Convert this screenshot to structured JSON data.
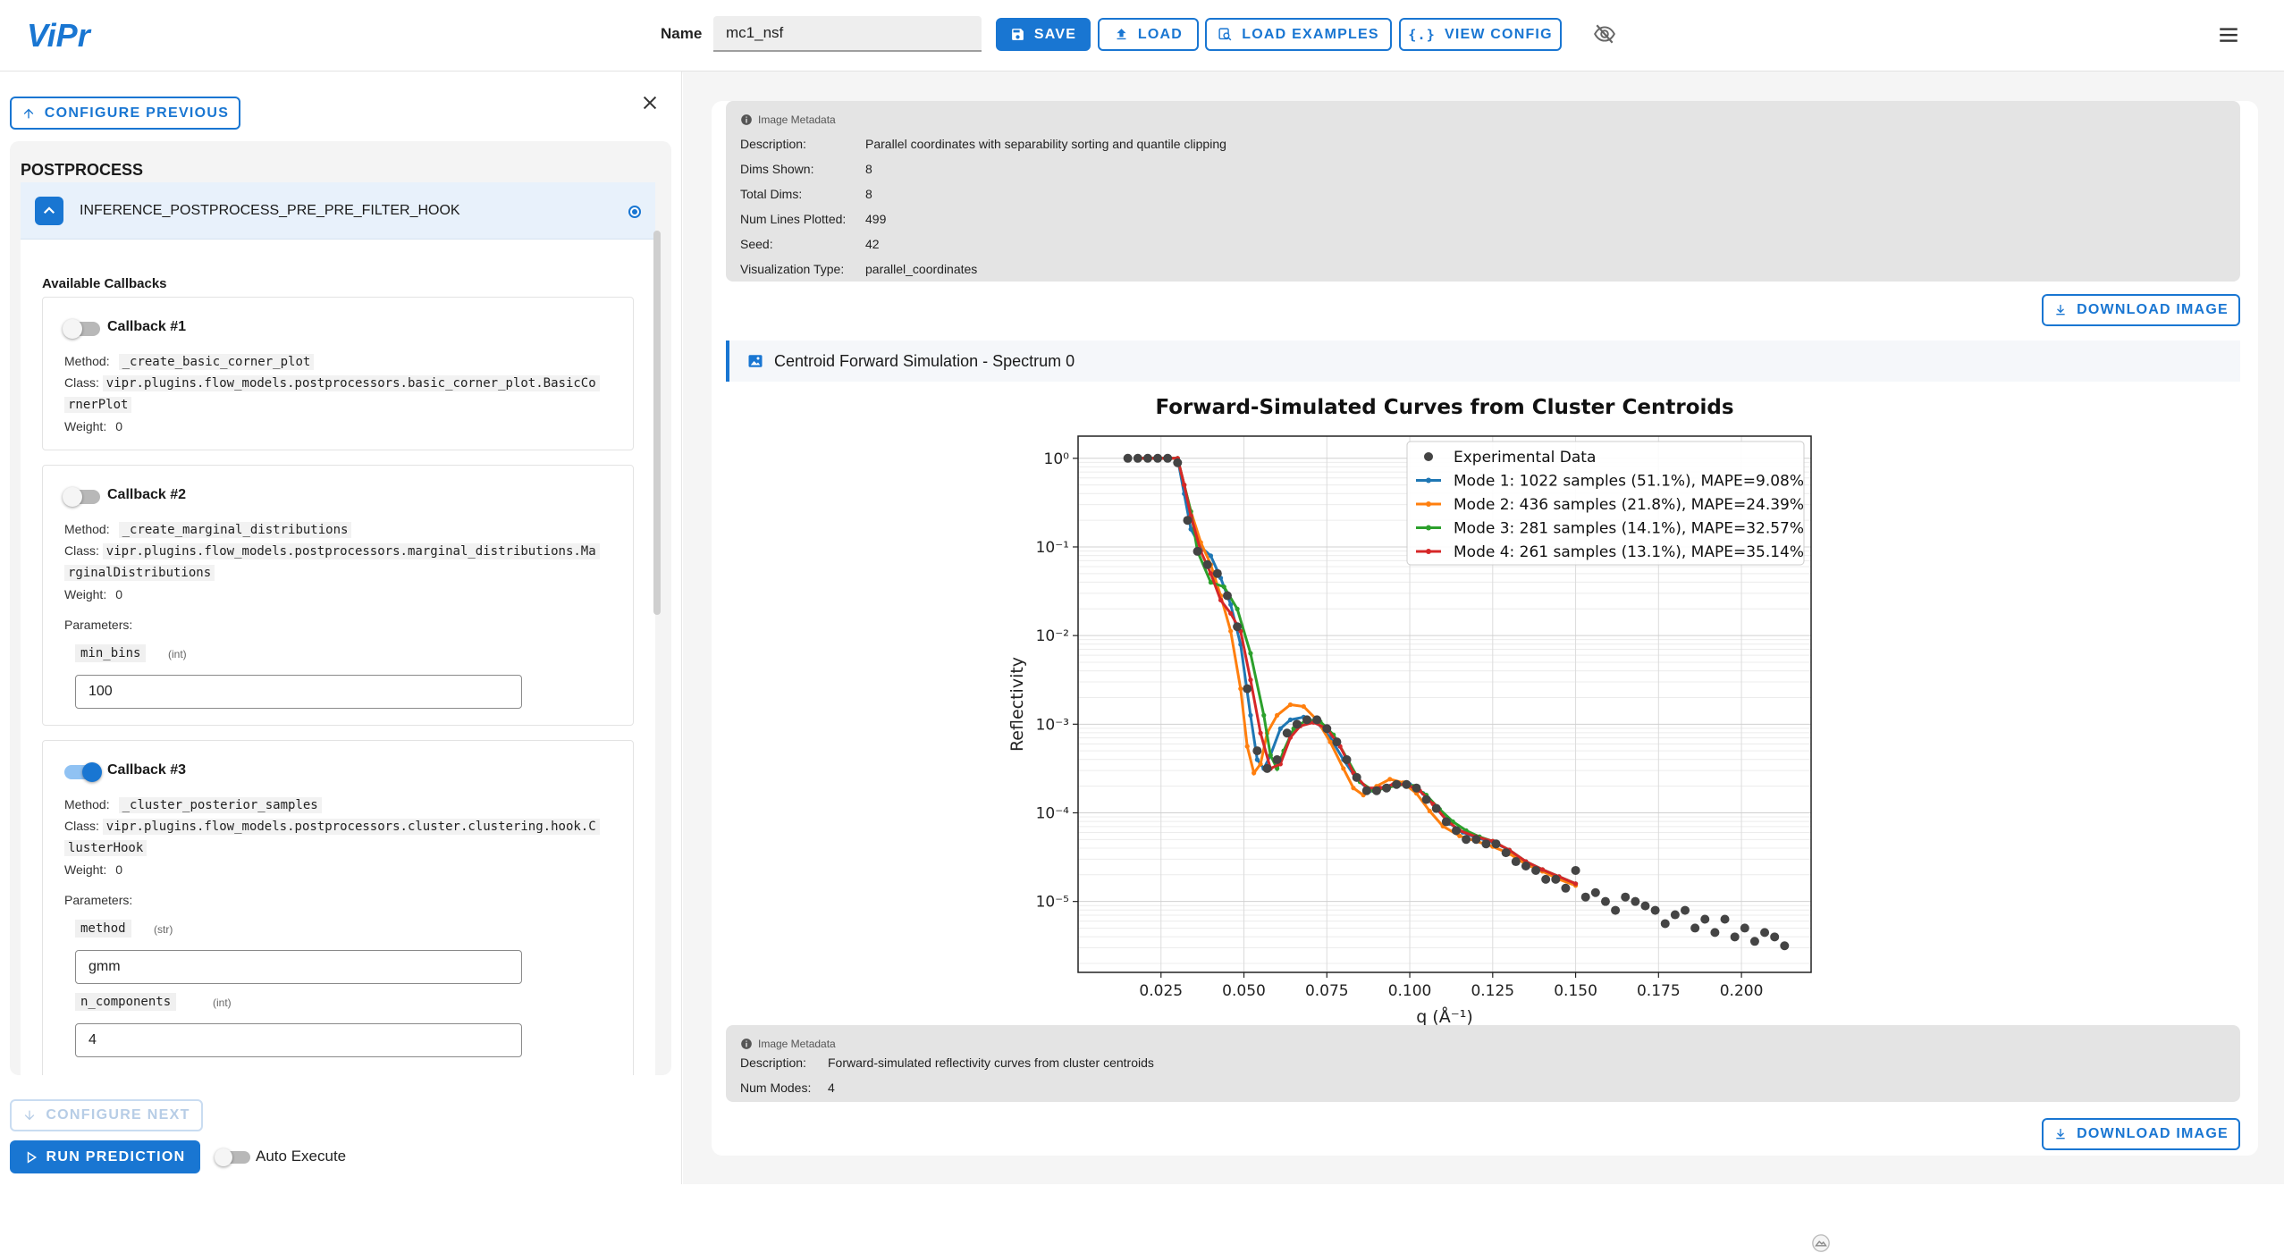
{
  "header": {
    "logo_text": "ViPr",
    "name_label": "Name",
    "name_value": "mc1_nsf",
    "save_label": "SAVE",
    "load_label": "LOAD",
    "load_examples_label": "LOAD EXAMPLES",
    "view_config_label": "VIEW CONFIG",
    "accent_color": "#1976d2"
  },
  "left": {
    "configure_previous_label": "CONFIGURE PREVIOUS",
    "configure_next_label": "CONFIGURE NEXT",
    "section_title": "POSTPROCESS",
    "hook_label": "INFERENCE_POSTPROCESS_PRE_PRE_FILTER_HOOK",
    "available_callbacks_label": "Available Callbacks",
    "callbacks": [
      {
        "title": "Callback #1",
        "enabled": false,
        "method_label": "Method:",
        "method": "_create_basic_corner_plot",
        "class_label": "Class:",
        "class_line1": "vipr.plugins.flow_models.postprocessors.basic_corner_plot.BasicCo",
        "class_line2": "rnerPlot",
        "weight_label": "Weight:",
        "weight": "0"
      },
      {
        "title": "Callback #2",
        "enabled": false,
        "method_label": "Method:",
        "method": "_create_marginal_distributions",
        "class_label": "Class:",
        "class_line1": "vipr.plugins.flow_models.postprocessors.marginal_distributions.Ma",
        "class_line2": "rginalDistributions",
        "weight_label": "Weight:",
        "weight": "0",
        "parameters_label": "Parameters:",
        "params": [
          {
            "name": "min_bins",
            "type": "(int)",
            "value": "100"
          }
        ]
      },
      {
        "title": "Callback #3",
        "enabled": true,
        "method_label": "Method:",
        "method": "_cluster_posterior_samples",
        "class_label": "Class:",
        "class_line1": "vipr.plugins.flow_models.postprocessors.cluster.clustering.hook.C",
        "class_line2": "lusterHook",
        "weight_label": "Weight:",
        "weight": "0",
        "parameters_label": "Parameters:",
        "params": [
          {
            "name": "method",
            "type": "(str)",
            "value": "gmm"
          },
          {
            "name": "n_components",
            "type": "(int)",
            "value": "4"
          }
        ]
      }
    ],
    "run_prediction_label": "RUN PREDICTION",
    "auto_execute_label": "Auto Execute"
  },
  "right": {
    "meta1": {
      "heading": "Image Metadata",
      "rows": [
        {
          "key": "Description:",
          "value": "Parallel coordinates with separability sorting and quantile clipping"
        },
        {
          "key": "Dims Shown:",
          "value": "8"
        },
        {
          "key": "Total Dims:",
          "value": "8"
        },
        {
          "key": "Num Lines Plotted:",
          "value": "499"
        },
        {
          "key": "Seed:",
          "value": "42"
        },
        {
          "key": "Visualization Type:",
          "value": "parallel_coordinates"
        }
      ]
    },
    "download_label": "DOWNLOAD IMAGE",
    "section_title": "Centroid Forward Simulation - Spectrum 0",
    "meta2": {
      "heading": "Image Metadata",
      "rows": [
        {
          "key": "Description:",
          "value": "Forward-simulated reflectivity curves from cluster centroids"
        },
        {
          "key": "Num Modes:",
          "value": "4"
        }
      ]
    }
  },
  "chart_data": {
    "type": "line",
    "title": "Forward-Simulated Curves from Cluster Centroids",
    "xlabel": "q (Å⁻¹)",
    "ylabel": "Reflectivity",
    "yscale": "log",
    "xlim": [
      0.0,
      0.221
    ],
    "ylim_exponent": [
      -5.8,
      0.25
    ],
    "xticks": [
      "0.025",
      "0.050",
      "0.075",
      "0.100",
      "0.125",
      "0.150",
      "0.175",
      "0.200"
    ],
    "yticks": [
      "10⁰",
      "10⁻¹",
      "10⁻²",
      "10⁻³",
      "10⁻⁴",
      "10⁻⁵"
    ],
    "grid": true,
    "legend_position": "top-right",
    "experimental": {
      "name": "Experimental Data",
      "color": "#444444",
      "points": [
        [
          0.015,
          0.0
        ],
        [
          0.018,
          0.0
        ],
        [
          0.021,
          0.0
        ],
        [
          0.024,
          0.0
        ],
        [
          0.027,
          0.0
        ],
        [
          0.03,
          -0.05
        ],
        [
          0.033,
          -0.7
        ],
        [
          0.036,
          -1.05
        ],
        [
          0.039,
          -1.2
        ],
        [
          0.042,
          -1.3
        ],
        [
          0.045,
          -1.55
        ],
        [
          0.048,
          -1.9
        ],
        [
          0.051,
          -2.6
        ],
        [
          0.054,
          -3.3
        ],
        [
          0.057,
          -3.5
        ],
        [
          0.06,
          -3.4
        ],
        [
          0.063,
          -3.1
        ],
        [
          0.066,
          -3.0
        ],
        [
          0.069,
          -2.95
        ],
        [
          0.072,
          -2.95
        ],
        [
          0.075,
          -3.05
        ],
        [
          0.078,
          -3.2
        ],
        [
          0.081,
          -3.4
        ],
        [
          0.084,
          -3.6
        ],
        [
          0.087,
          -3.75
        ],
        [
          0.09,
          -3.75
        ],
        [
          0.093,
          -3.72
        ],
        [
          0.096,
          -3.68
        ],
        [
          0.099,
          -3.68
        ],
        [
          0.102,
          -3.72
        ],
        [
          0.105,
          -3.85
        ],
        [
          0.108,
          -3.95
        ],
        [
          0.111,
          -4.1
        ],
        [
          0.114,
          -4.2
        ],
        [
          0.117,
          -4.3
        ],
        [
          0.12,
          -4.3
        ],
        [
          0.123,
          -4.35
        ],
        [
          0.126,
          -4.35
        ],
        [
          0.129,
          -4.45
        ],
        [
          0.132,
          -4.55
        ],
        [
          0.135,
          -4.6
        ],
        [
          0.138,
          -4.65
        ],
        [
          0.141,
          -4.75
        ],
        [
          0.144,
          -4.75
        ],
        [
          0.147,
          -4.85
        ],
        [
          0.15,
          -4.65
        ],
        [
          0.153,
          -4.95
        ],
        [
          0.156,
          -4.9
        ],
        [
          0.159,
          -5.0
        ],
        [
          0.162,
          -5.1
        ],
        [
          0.165,
          -4.95
        ],
        [
          0.168,
          -5.0
        ],
        [
          0.171,
          -5.05
        ],
        [
          0.174,
          -5.1
        ],
        [
          0.177,
          -5.25
        ],
        [
          0.18,
          -5.15
        ],
        [
          0.183,
          -5.1
        ],
        [
          0.186,
          -5.3
        ],
        [
          0.189,
          -5.2
        ],
        [
          0.192,
          -5.35
        ],
        [
          0.195,
          -5.2
        ],
        [
          0.198,
          -5.4
        ],
        [
          0.201,
          -5.3
        ],
        [
          0.204,
          -5.45
        ],
        [
          0.207,
          -5.35
        ],
        [
          0.21,
          -5.4
        ],
        [
          0.213,
          -5.5
        ]
      ]
    },
    "series": [
      {
        "name": "Mode 1: 1022 samples (51.1%), MAPE=9.08%",
        "color": "#1f77b4",
        "points": [
          [
            0.018,
            0.0
          ],
          [
            0.03,
            0.0
          ],
          [
            0.032,
            -0.4
          ],
          [
            0.034,
            -0.8
          ],
          [
            0.037,
            -1.0
          ],
          [
            0.04,
            -1.1
          ],
          [
            0.043,
            -1.35
          ],
          [
            0.046,
            -1.65
          ],
          [
            0.049,
            -2.1
          ],
          [
            0.052,
            -2.9
          ],
          [
            0.054,
            -3.4
          ],
          [
            0.056,
            -3.5
          ],
          [
            0.058,
            -3.35
          ],
          [
            0.061,
            -3.05
          ],
          [
            0.064,
            -2.95
          ],
          [
            0.068,
            -2.92
          ],
          [
            0.072,
            -2.98
          ],
          [
            0.076,
            -3.15
          ],
          [
            0.08,
            -3.4
          ],
          [
            0.084,
            -3.62
          ],
          [
            0.088,
            -3.75
          ],
          [
            0.092,
            -3.72
          ],
          [
            0.096,
            -3.66
          ],
          [
            0.1,
            -3.68
          ],
          [
            0.104,
            -3.78
          ],
          [
            0.108,
            -3.95
          ],
          [
            0.112,
            -4.12
          ],
          [
            0.116,
            -4.22
          ],
          [
            0.12,
            -4.28
          ],
          [
            0.125,
            -4.33
          ],
          [
            0.13,
            -4.42
          ],
          [
            0.135,
            -4.55
          ],
          [
            0.14,
            -4.64
          ],
          [
            0.145,
            -4.72
          ],
          [
            0.15,
            -4.8
          ]
        ]
      },
      {
        "name": "Mode 2: 436 samples (21.8%), MAPE=24.39%",
        "color": "#ff7f0e",
        "points": [
          [
            0.018,
            0.0
          ],
          [
            0.03,
            0.0
          ],
          [
            0.032,
            -0.3
          ],
          [
            0.034,
            -0.6
          ],
          [
            0.037,
            -0.95
          ],
          [
            0.04,
            -1.2
          ],
          [
            0.043,
            -1.55
          ],
          [
            0.046,
            -1.95
          ],
          [
            0.049,
            -2.6
          ],
          [
            0.051,
            -3.25
          ],
          [
            0.053,
            -3.55
          ],
          [
            0.055,
            -3.45
          ],
          [
            0.057,
            -3.1
          ],
          [
            0.06,
            -2.9
          ],
          [
            0.064,
            -2.78
          ],
          [
            0.068,
            -2.8
          ],
          [
            0.072,
            -2.95
          ],
          [
            0.076,
            -3.2
          ],
          [
            0.08,
            -3.5
          ],
          [
            0.083,
            -3.72
          ],
          [
            0.086,
            -3.8
          ],
          [
            0.09,
            -3.7
          ],
          [
            0.094,
            -3.62
          ],
          [
            0.098,
            -3.66
          ],
          [
            0.102,
            -3.78
          ],
          [
            0.106,
            -3.98
          ],
          [
            0.11,
            -4.15
          ],
          [
            0.115,
            -4.26
          ],
          [
            0.12,
            -4.32
          ],
          [
            0.125,
            -4.38
          ],
          [
            0.13,
            -4.46
          ],
          [
            0.135,
            -4.58
          ],
          [
            0.14,
            -4.66
          ],
          [
            0.145,
            -4.75
          ],
          [
            0.15,
            -4.82
          ]
        ]
      },
      {
        "name": "Mode 3: 281 samples (14.1%), MAPE=32.57%",
        "color": "#2ca02c",
        "points": [
          [
            0.018,
            0.0
          ],
          [
            0.03,
            0.0
          ],
          [
            0.032,
            -0.3
          ],
          [
            0.034,
            -0.6
          ],
          [
            0.036,
            -1.05
          ],
          [
            0.04,
            -1.4
          ],
          [
            0.044,
            -1.45
          ],
          [
            0.048,
            -1.7
          ],
          [
            0.052,
            -2.2
          ],
          [
            0.056,
            -2.9
          ],
          [
            0.058,
            -3.35
          ],
          [
            0.06,
            -3.5
          ],
          [
            0.062,
            -3.3
          ],
          [
            0.065,
            -3.05
          ],
          [
            0.069,
            -2.95
          ],
          [
            0.073,
            -2.97
          ],
          [
            0.077,
            -3.12
          ],
          [
            0.081,
            -3.38
          ],
          [
            0.085,
            -3.65
          ],
          [
            0.089,
            -3.75
          ],
          [
            0.093,
            -3.72
          ],
          [
            0.097,
            -3.68
          ],
          [
            0.101,
            -3.7
          ],
          [
            0.105,
            -3.8
          ],
          [
            0.109,
            -3.96
          ],
          [
            0.113,
            -4.1
          ],
          [
            0.117,
            -4.2
          ],
          [
            0.121,
            -4.27
          ],
          [
            0.125,
            -4.32
          ],
          [
            0.13,
            -4.42
          ],
          [
            0.135,
            -4.55
          ],
          [
            0.14,
            -4.64
          ],
          [
            0.145,
            -4.72
          ],
          [
            0.15,
            -4.8
          ]
        ]
      },
      {
        "name": "Mode 4: 261 samples (13.1%), MAPE=35.14%",
        "color": "#d62728",
        "points": [
          [
            0.018,
            0.0
          ],
          [
            0.03,
            0.0
          ],
          [
            0.032,
            -0.3
          ],
          [
            0.034,
            -0.65
          ],
          [
            0.037,
            -1.05
          ],
          [
            0.04,
            -1.3
          ],
          [
            0.043,
            -1.6
          ],
          [
            0.046,
            -1.75
          ],
          [
            0.049,
            -1.95
          ],
          [
            0.052,
            -2.5
          ],
          [
            0.055,
            -3.1
          ],
          [
            0.058,
            -3.5
          ],
          [
            0.061,
            -3.45
          ],
          [
            0.064,
            -3.15
          ],
          [
            0.067,
            -3.02
          ],
          [
            0.071,
            -2.98
          ],
          [
            0.075,
            -3.05
          ],
          [
            0.079,
            -3.25
          ],
          [
            0.083,
            -3.55
          ],
          [
            0.087,
            -3.72
          ],
          [
            0.091,
            -3.72
          ],
          [
            0.095,
            -3.68
          ],
          [
            0.099,
            -3.68
          ],
          [
            0.103,
            -3.75
          ],
          [
            0.107,
            -3.9
          ],
          [
            0.111,
            -4.08
          ],
          [
            0.115,
            -4.2
          ],
          [
            0.12,
            -4.27
          ],
          [
            0.125,
            -4.32
          ],
          [
            0.13,
            -4.42
          ],
          [
            0.135,
            -4.55
          ],
          [
            0.14,
            -4.64
          ],
          [
            0.145,
            -4.72
          ],
          [
            0.15,
            -4.8
          ]
        ]
      }
    ]
  }
}
